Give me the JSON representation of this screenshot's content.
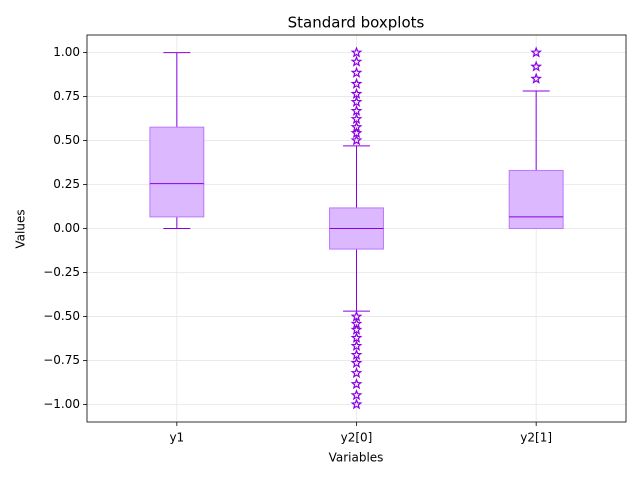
{
  "chart_data": {
    "type": "box",
    "title": "Standard boxplots",
    "xlabel": "Variables",
    "ylabel": "Values",
    "categories": [
      "y1",
      "y2[0]",
      "y2[1]"
    ],
    "boxes": [
      {
        "whislo": 0.0,
        "q1": 0.066,
        "med": 0.255,
        "q3": 0.576,
        "whishi": 1.0,
        "fliers": []
      },
      {
        "whislo": -0.47,
        "q1": -0.117,
        "med": 0.0,
        "q3": 0.117,
        "whishi": 0.47,
        "fliers": [
          0.501,
          0.542,
          0.576,
          0.622,
          0.668,
          0.719,
          0.765,
          0.822,
          0.885,
          0.948,
          1.0,
          -0.501,
          -0.542,
          -0.576,
          -0.622,
          -0.668,
          -0.719,
          -0.765,
          -0.822,
          -0.885,
          -0.948,
          -1.0
        ]
      },
      {
        "whislo": 0.0,
        "q1": 0.0,
        "med": 0.066,
        "q3": 0.33,
        "whishi": 0.782,
        "fliers": [
          0.851,
          0.92,
          1.0
        ]
      }
    ],
    "ylim": [
      -1.1,
      1.1
    ],
    "yticks": [
      {
        "value": -1,
        "label": "−1.00"
      },
      {
        "value": -0.75,
        "label": "−0.75"
      },
      {
        "value": -0.5,
        "label": "−0.50"
      },
      {
        "value": -0.25,
        "label": "−0.25"
      },
      {
        "value": 0,
        "label": "0.00"
      },
      {
        "value": 0.25,
        "label": "0.25"
      },
      {
        "value": 0.5,
        "label": "0.50"
      },
      {
        "value": 0.75,
        "label": "0.75"
      },
      {
        "value": 1,
        "label": "1.00"
      }
    ],
    "grid": true,
    "box_color": "#dcb8ff",
    "edge_color": "#bb77ff",
    "line_color": "#8a00e6"
  }
}
